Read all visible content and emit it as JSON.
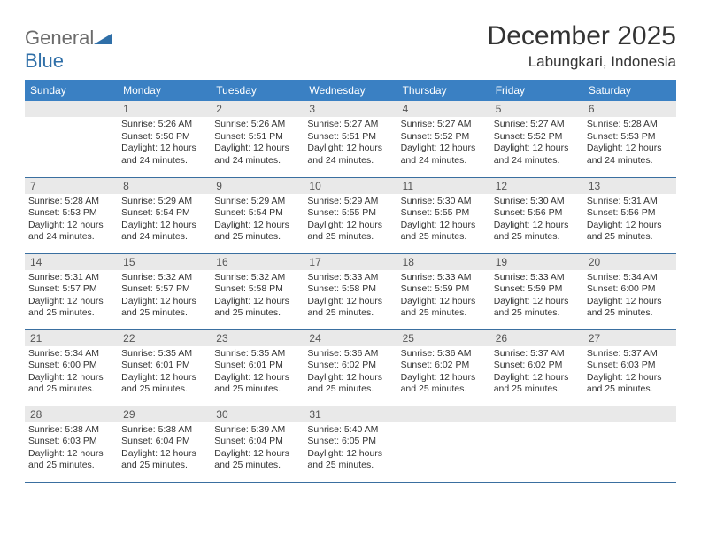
{
  "logo": {
    "part1": "General",
    "part2": "Blue"
  },
  "title": "December 2025",
  "location": "Labungkari, Indonesia",
  "colors": {
    "header_bg": "#3a80c3",
    "header_text": "#ffffff",
    "daynum_bg": "#e9e9e9",
    "border": "#3a6fa0",
    "logo_gray": "#6b6b6b",
    "logo_blue": "#2f6fa8"
  },
  "weekdays": [
    "Sunday",
    "Monday",
    "Tuesday",
    "Wednesday",
    "Thursday",
    "Friday",
    "Saturday"
  ],
  "grid": [
    [
      {
        "empty": true
      },
      {
        "n": "1",
        "sr": "Sunrise: 5:26 AM",
        "ss": "Sunset: 5:50 PM",
        "d1": "Daylight: 12 hours",
        "d2": "and 24 minutes."
      },
      {
        "n": "2",
        "sr": "Sunrise: 5:26 AM",
        "ss": "Sunset: 5:51 PM",
        "d1": "Daylight: 12 hours",
        "d2": "and 24 minutes."
      },
      {
        "n": "3",
        "sr": "Sunrise: 5:27 AM",
        "ss": "Sunset: 5:51 PM",
        "d1": "Daylight: 12 hours",
        "d2": "and 24 minutes."
      },
      {
        "n": "4",
        "sr": "Sunrise: 5:27 AM",
        "ss": "Sunset: 5:52 PM",
        "d1": "Daylight: 12 hours",
        "d2": "and 24 minutes."
      },
      {
        "n": "5",
        "sr": "Sunrise: 5:27 AM",
        "ss": "Sunset: 5:52 PM",
        "d1": "Daylight: 12 hours",
        "d2": "and 24 minutes."
      },
      {
        "n": "6",
        "sr": "Sunrise: 5:28 AM",
        "ss": "Sunset: 5:53 PM",
        "d1": "Daylight: 12 hours",
        "d2": "and 24 minutes."
      }
    ],
    [
      {
        "n": "7",
        "sr": "Sunrise: 5:28 AM",
        "ss": "Sunset: 5:53 PM",
        "d1": "Daylight: 12 hours",
        "d2": "and 24 minutes."
      },
      {
        "n": "8",
        "sr": "Sunrise: 5:29 AM",
        "ss": "Sunset: 5:54 PM",
        "d1": "Daylight: 12 hours",
        "d2": "and 24 minutes."
      },
      {
        "n": "9",
        "sr": "Sunrise: 5:29 AM",
        "ss": "Sunset: 5:54 PM",
        "d1": "Daylight: 12 hours",
        "d2": "and 25 minutes."
      },
      {
        "n": "10",
        "sr": "Sunrise: 5:29 AM",
        "ss": "Sunset: 5:55 PM",
        "d1": "Daylight: 12 hours",
        "d2": "and 25 minutes."
      },
      {
        "n": "11",
        "sr": "Sunrise: 5:30 AM",
        "ss": "Sunset: 5:55 PM",
        "d1": "Daylight: 12 hours",
        "d2": "and 25 minutes."
      },
      {
        "n": "12",
        "sr": "Sunrise: 5:30 AM",
        "ss": "Sunset: 5:56 PM",
        "d1": "Daylight: 12 hours",
        "d2": "and 25 minutes."
      },
      {
        "n": "13",
        "sr": "Sunrise: 5:31 AM",
        "ss": "Sunset: 5:56 PM",
        "d1": "Daylight: 12 hours",
        "d2": "and 25 minutes."
      }
    ],
    [
      {
        "n": "14",
        "sr": "Sunrise: 5:31 AM",
        "ss": "Sunset: 5:57 PM",
        "d1": "Daylight: 12 hours",
        "d2": "and 25 minutes."
      },
      {
        "n": "15",
        "sr": "Sunrise: 5:32 AM",
        "ss": "Sunset: 5:57 PM",
        "d1": "Daylight: 12 hours",
        "d2": "and 25 minutes."
      },
      {
        "n": "16",
        "sr": "Sunrise: 5:32 AM",
        "ss": "Sunset: 5:58 PM",
        "d1": "Daylight: 12 hours",
        "d2": "and 25 minutes."
      },
      {
        "n": "17",
        "sr": "Sunrise: 5:33 AM",
        "ss": "Sunset: 5:58 PM",
        "d1": "Daylight: 12 hours",
        "d2": "and 25 minutes."
      },
      {
        "n": "18",
        "sr": "Sunrise: 5:33 AM",
        "ss": "Sunset: 5:59 PM",
        "d1": "Daylight: 12 hours",
        "d2": "and 25 minutes."
      },
      {
        "n": "19",
        "sr": "Sunrise: 5:33 AM",
        "ss": "Sunset: 5:59 PM",
        "d1": "Daylight: 12 hours",
        "d2": "and 25 minutes."
      },
      {
        "n": "20",
        "sr": "Sunrise: 5:34 AM",
        "ss": "Sunset: 6:00 PM",
        "d1": "Daylight: 12 hours",
        "d2": "and 25 minutes."
      }
    ],
    [
      {
        "n": "21",
        "sr": "Sunrise: 5:34 AM",
        "ss": "Sunset: 6:00 PM",
        "d1": "Daylight: 12 hours",
        "d2": "and 25 minutes."
      },
      {
        "n": "22",
        "sr": "Sunrise: 5:35 AM",
        "ss": "Sunset: 6:01 PM",
        "d1": "Daylight: 12 hours",
        "d2": "and 25 minutes."
      },
      {
        "n": "23",
        "sr": "Sunrise: 5:35 AM",
        "ss": "Sunset: 6:01 PM",
        "d1": "Daylight: 12 hours",
        "d2": "and 25 minutes."
      },
      {
        "n": "24",
        "sr": "Sunrise: 5:36 AM",
        "ss": "Sunset: 6:02 PM",
        "d1": "Daylight: 12 hours",
        "d2": "and 25 minutes."
      },
      {
        "n": "25",
        "sr": "Sunrise: 5:36 AM",
        "ss": "Sunset: 6:02 PM",
        "d1": "Daylight: 12 hours",
        "d2": "and 25 minutes."
      },
      {
        "n": "26",
        "sr": "Sunrise: 5:37 AM",
        "ss": "Sunset: 6:02 PM",
        "d1": "Daylight: 12 hours",
        "d2": "and 25 minutes."
      },
      {
        "n": "27",
        "sr": "Sunrise: 5:37 AM",
        "ss": "Sunset: 6:03 PM",
        "d1": "Daylight: 12 hours",
        "d2": "and 25 minutes."
      }
    ],
    [
      {
        "n": "28",
        "sr": "Sunrise: 5:38 AM",
        "ss": "Sunset: 6:03 PM",
        "d1": "Daylight: 12 hours",
        "d2": "and 25 minutes."
      },
      {
        "n": "29",
        "sr": "Sunrise: 5:38 AM",
        "ss": "Sunset: 6:04 PM",
        "d1": "Daylight: 12 hours",
        "d2": "and 25 minutes."
      },
      {
        "n": "30",
        "sr": "Sunrise: 5:39 AM",
        "ss": "Sunset: 6:04 PM",
        "d1": "Daylight: 12 hours",
        "d2": "and 25 minutes."
      },
      {
        "n": "31",
        "sr": "Sunrise: 5:40 AM",
        "ss": "Sunset: 6:05 PM",
        "d1": "Daylight: 12 hours",
        "d2": "and 25 minutes."
      },
      {
        "empty": true
      },
      {
        "empty": true
      },
      {
        "empty": true
      }
    ]
  ]
}
